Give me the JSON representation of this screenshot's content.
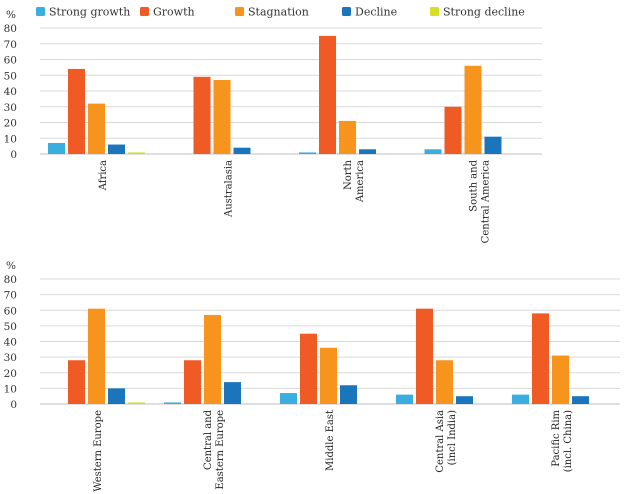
{
  "legend": [
    {
      "name": "Strong growth",
      "color": "#3baee0"
    },
    {
      "name": "Growth",
      "color": "#f05a24"
    },
    {
      "name": "Stagnation",
      "color": "#f7941d"
    },
    {
      "name": "Decline",
      "color": "#1b75bb"
    },
    {
      "name": "Strong decline",
      "color": "#d7df23"
    }
  ],
  "chart_data": [
    {
      "type": "bar",
      "ylabel": "%",
      "ylim": [
        0,
        80
      ],
      "yticks": [
        0,
        10,
        20,
        30,
        40,
        50,
        60,
        70,
        80
      ],
      "grid": true,
      "legend_position": "top",
      "categories": [
        [
          "Africa"
        ],
        [
          "Australasia"
        ],
        [
          "North",
          "America"
        ],
        [
          "South and",
          "Central America"
        ]
      ],
      "series": [
        {
          "name": "Strong growth",
          "values": [
            7,
            0,
            1,
            3
          ]
        },
        {
          "name": "Growth",
          "values": [
            54,
            49,
            75,
            30
          ]
        },
        {
          "name": "Stagnation",
          "values": [
            32,
            47,
            21,
            56
          ]
        },
        {
          "name": "Decline",
          "values": [
            6,
            4,
            3,
            11
          ]
        },
        {
          "name": "Strong decline",
          "values": [
            1,
            0,
            0,
            0
          ]
        }
      ]
    },
    {
      "type": "bar",
      "ylabel": "%",
      "ylim": [
        0,
        80
      ],
      "yticks": [
        0,
        10,
        20,
        30,
        40,
        50,
        60,
        70,
        80
      ],
      "grid": true,
      "categories": [
        [
          "Western Europe"
        ],
        [
          "Central and",
          "Eastern Europe"
        ],
        [
          "Middle East"
        ],
        [
          "Central Asia",
          "(incl India)"
        ],
        [
          "Pacific Rim",
          "(incl. China)"
        ]
      ],
      "series": [
        {
          "name": "Strong growth",
          "values": [
            0,
            1,
            7,
            6,
            6
          ]
        },
        {
          "name": "Growth",
          "values": [
            28,
            28,
            45,
            61,
            58
          ]
        },
        {
          "name": "Stagnation",
          "values": [
            61,
            57,
            36,
            28,
            31
          ]
        },
        {
          "name": "Decline",
          "values": [
            10,
            14,
            12,
            5,
            5
          ]
        },
        {
          "name": "Strong decline",
          "values": [
            1,
            0,
            0,
            0,
            0
          ]
        }
      ]
    }
  ]
}
